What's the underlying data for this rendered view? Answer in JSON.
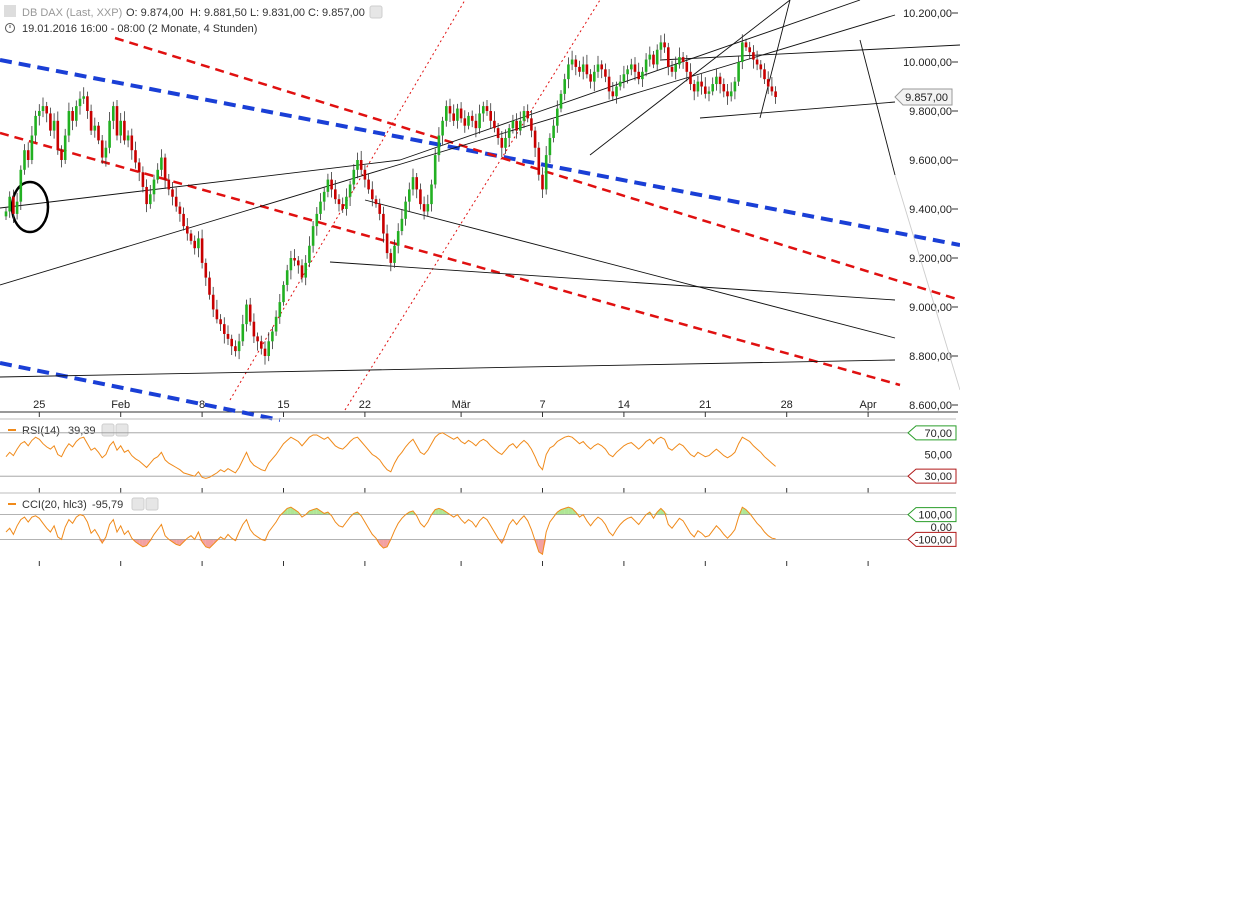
{
  "header": {
    "instrument": "DB DAX (Last, XXP)",
    "ohlc": {
      "o": "O: 9.874,00",
      "h": "H: 9.881,50",
      "l": "L: 9.831,00",
      "c": "C: 9.857,00"
    },
    "range": "19.01.2016 16:00 - 08:00 (2 Monate, 4 Stunden)"
  },
  "colors": {
    "up": "#22b022",
    "down": "#c80000",
    "blue_trend": "#1a3fd6",
    "red_trend": "#e01010",
    "indicator": "#f08a1a",
    "panel_line": "#9a9a9a",
    "rsi_upper_tag": "#2a9d2a",
    "rsi_lower_tag": "#b01818"
  },
  "chart_data": [
    {
      "type": "candlestick",
      "ylim": [
        8600,
        10250
      ],
      "y_ticks": [
        "10.200,00",
        "10.000,00",
        "9.800,00",
        "9.600,00",
        "9.400,00",
        "9.200,00",
        "9.000,00",
        "8.800,00",
        "8.600,00"
      ],
      "y_tick_values": [
        10200,
        10000,
        9800,
        9600,
        9400,
        9200,
        9000,
        8800,
        8600
      ],
      "x_labels": [
        "25",
        "Feb",
        "8",
        "15",
        "22",
        "Mär",
        "7",
        "14",
        "21",
        "28",
        "Apr"
      ],
      "x_label_index": [
        9,
        31,
        53,
        75,
        97,
        123,
        145,
        167,
        189,
        211,
        233
      ],
      "last_price_label": "9.857,00",
      "last_price": 9857,
      "close_series": [
        9390,
        9450,
        9380,
        9430,
        9560,
        9640,
        9600,
        9700,
        9780,
        9800,
        9820,
        9790,
        9720,
        9760,
        9640,
        9600,
        9700,
        9800,
        9760,
        9820,
        9850,
        9860,
        9800,
        9720,
        9740,
        9680,
        9610,
        9650,
        9760,
        9820,
        9700,
        9760,
        9680,
        9700,
        9640,
        9590,
        9550,
        9490,
        9420,
        9460,
        9520,
        9560,
        9610,
        9520,
        9480,
        9450,
        9410,
        9380,
        9330,
        9300,
        9270,
        9240,
        9280,
        9180,
        9120,
        9050,
        8990,
        8950,
        8930,
        8890,
        8870,
        8840,
        8820,
        8860,
        8930,
        9010,
        8940,
        8880,
        8860,
        8830,
        8800,
        8860,
        8900,
        8960,
        9020,
        9090,
        9150,
        9200,
        9190,
        9170,
        9120,
        9180,
        9250,
        9330,
        9380,
        9430,
        9470,
        9520,
        9480,
        9440,
        9420,
        9400,
        9450,
        9500,
        9560,
        9600,
        9560,
        9520,
        9480,
        9440,
        9420,
        9380,
        9300,
        9220,
        9180,
        9250,
        9310,
        9360,
        9430,
        9480,
        9530,
        9480,
        9420,
        9390,
        9420,
        9500,
        9620,
        9700,
        9760,
        9820,
        9790,
        9760,
        9810,
        9770,
        9740,
        9780,
        9760,
        9730,
        9790,
        9820,
        9800,
        9760,
        9730,
        9690,
        9650,
        9690,
        9730,
        9760,
        9720,
        9760,
        9800,
        9770,
        9720,
        9650,
        9540,
        9480,
        9620,
        9690,
        9740,
        9810,
        9870,
        9930,
        9990,
        10010,
        9980,
        9960,
        9990,
        9950,
        9920,
        9960,
        9990,
        9970,
        9940,
        9880,
        9860,
        9900,
        9920,
        9950,
        9970,
        9990,
        9960,
        9930,
        9960,
        10010,
        10030,
        9990,
        10050,
        10080,
        10060,
        9980,
        9960,
        9990,
        10020,
        10000,
        9960,
        9910,
        9880,
        9920,
        9900,
        9870,
        9880,
        9910,
        9940,
        9910,
        9880,
        9860,
        9880,
        9920,
        10000,
        10080,
        10060,
        10040,
        10010,
        9990,
        9970,
        9930,
        9900,
        9880,
        9857
      ],
      "trendlines_note": "hand-drawn trendlines and channels"
    },
    {
      "type": "line",
      "name": "RSI(14)",
      "value_label": "39,39",
      "ylim": [
        20,
        80
      ],
      "levels": [
        70,
        50,
        30
      ],
      "level_labels": [
        "70,00",
        "50,00",
        "30,00"
      ],
      "series": [
        48,
        52,
        49,
        55,
        60,
        62,
        58,
        63,
        66,
        64,
        60,
        57,
        55,
        58,
        50,
        48,
        55,
        60,
        57,
        62,
        65,
        66,
        60,
        54,
        56,
        52,
        47,
        50,
        58,
        62,
        54,
        58,
        52,
        54,
        49,
        46,
        44,
        41,
        38,
        42,
        46,
        48,
        52,
        45,
        42,
        40,
        38,
        36,
        33,
        32,
        31,
        30,
        34,
        29,
        28,
        29,
        31,
        33,
        36,
        34,
        37,
        35,
        33,
        38,
        45,
        52,
        44,
        40,
        38,
        36,
        35,
        42,
        46,
        50,
        55,
        60,
        63,
        66,
        64,
        62,
        58,
        62,
        66,
        68,
        68,
        66,
        64,
        66,
        62,
        58,
        56,
        55,
        58,
        62,
        65,
        66,
        62,
        58,
        54,
        50,
        48,
        45,
        40,
        36,
        34,
        42,
        48,
        52,
        57,
        61,
        64,
        58,
        52,
        50,
        54,
        60,
        66,
        69,
        70,
        68,
        66,
        64,
        66,
        62,
        60,
        63,
        61,
        58,
        62,
        64,
        62,
        58,
        55,
        52,
        50,
        54,
        58,
        60,
        56,
        60,
        63,
        60,
        55,
        48,
        40,
        36,
        50,
        56,
        58,
        62,
        64,
        66,
        67,
        66,
        63,
        60,
        62,
        58,
        55,
        58,
        60,
        58,
        55,
        50,
        48,
        52,
        55,
        58,
        60,
        61,
        58,
        55,
        58,
        62,
        64,
        60,
        64,
        66,
        64,
        56,
        54,
        57,
        60,
        58,
        54,
        50,
        48,
        52,
        50,
        48,
        49,
        52,
        55,
        52,
        49,
        47,
        49,
        52,
        60,
        66,
        64,
        62,
        58,
        55,
        52,
        48,
        45,
        42,
        39
      ]
    },
    {
      "type": "line",
      "name": "CCI(20, hlc3)",
      "value_label": "-95,79",
      "ylim": [
        -250,
        250
      ],
      "levels": [
        100,
        0,
        -100
      ],
      "level_labels": [
        "100,00",
        "0,00",
        "-100,00"
      ],
      "series": [
        -40,
        -10,
        -60,
        10,
        60,
        80,
        40,
        80,
        90,
        70,
        30,
        -10,
        -40,
        10,
        -80,
        -100,
        0,
        60,
        30,
        80,
        100,
        90,
        40,
        -50,
        -20,
        -70,
        -130,
        -80,
        20,
        60,
        -40,
        10,
        -60,
        -30,
        -90,
        -120,
        -140,
        -160,
        -150,
        -110,
        -60,
        -20,
        20,
        -70,
        -100,
        -120,
        -140,
        -150,
        -120,
        -90,
        -70,
        -100,
        -40,
        -120,
        -160,
        -170,
        -140,
        -110,
        -80,
        -100,
        -60,
        -90,
        -110,
        -40,
        20,
        60,
        -20,
        -60,
        -80,
        -100,
        -110,
        -40,
        0,
        40,
        90,
        120,
        150,
        160,
        140,
        120,
        80,
        100,
        130,
        140,
        150,
        130,
        110,
        120,
        90,
        40,
        10,
        0,
        40,
        80,
        110,
        120,
        90,
        40,
        -10,
        -60,
        -90,
        -140,
        -170,
        -160,
        -100,
        -30,
        30,
        70,
        100,
        120,
        130,
        90,
        30,
        0,
        40,
        100,
        140,
        150,
        140,
        120,
        100,
        80,
        100,
        60,
        30,
        60,
        40,
        0,
        50,
        80,
        60,
        10,
        -40,
        -90,
        -130,
        -60,
        20,
        60,
        20,
        60,
        90,
        50,
        -20,
        -110,
        -200,
        -220,
        -40,
        40,
        80,
        120,
        140,
        150,
        160,
        150,
        120,
        80,
        100,
        50,
        10,
        50,
        80,
        60,
        20,
        -40,
        -70,
        -20,
        20,
        50,
        70,
        80,
        50,
        20,
        60,
        100,
        120,
        70,
        120,
        150,
        120,
        20,
        -10,
        30,
        70,
        50,
        0,
        -50,
        -80,
        -30,
        -50,
        -80,
        -70,
        -30,
        10,
        -20,
        -60,
        -90,
        -60,
        -20,
        80,
        160,
        140,
        110,
        70,
        30,
        0,
        -40,
        -70,
        -90,
        -96
      ]
    }
  ]
}
